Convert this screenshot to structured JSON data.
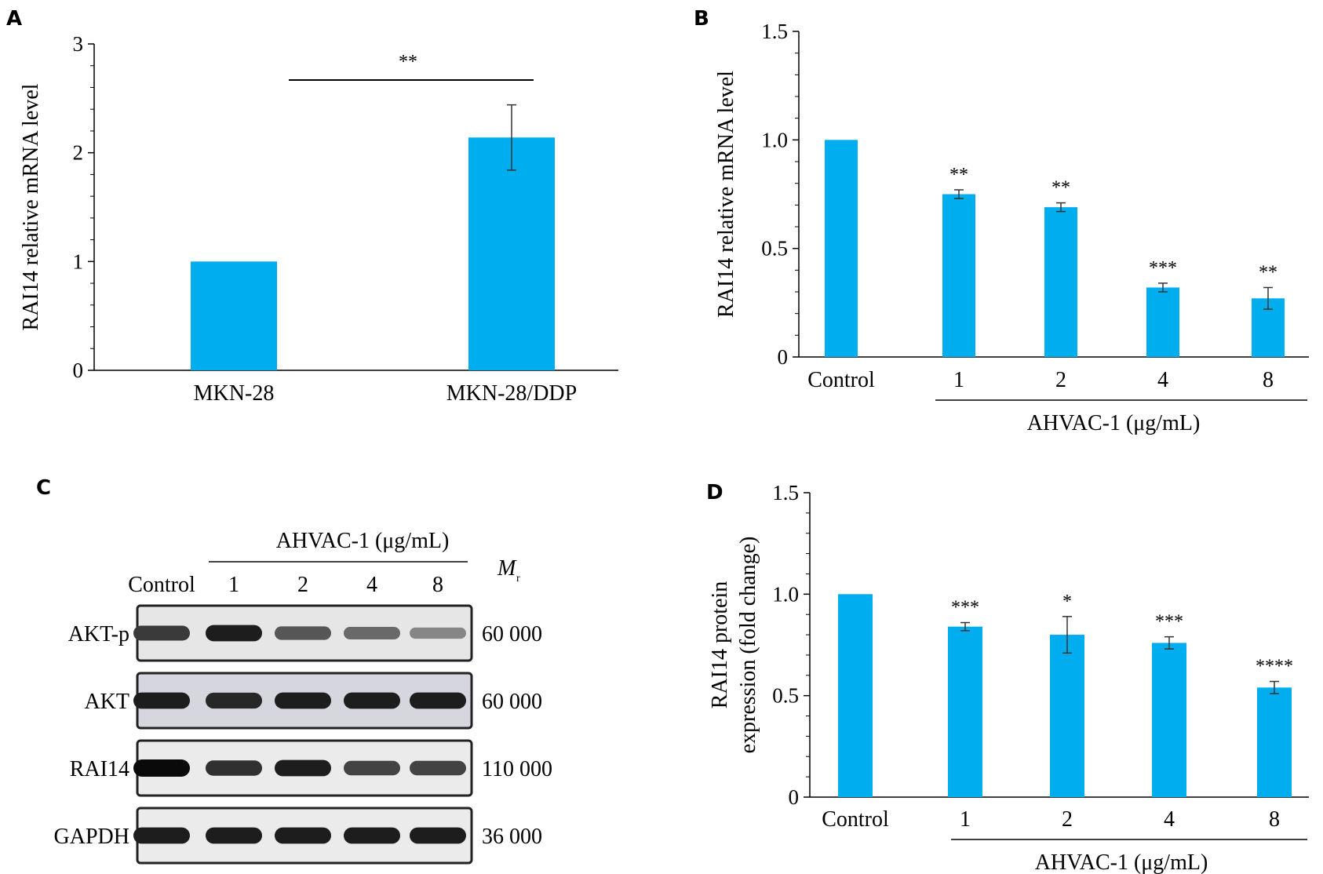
{
  "panel_labels": {
    "a": "A",
    "b": "B",
    "c": "C",
    "d": "D"
  },
  "bar_color": "#00aeef",
  "chart_data": [
    {
      "panel": "A",
      "type": "bar",
      "categories": [
        "MKN-28",
        "MKN-28/DDP"
      ],
      "series": [
        {
          "values": [
            1.0,
            2.14
          ],
          "errors": [
            0.0,
            0.3
          ]
        }
      ],
      "ylabel": "RAI14 relative mRNA level",
      "xlabel": "",
      "ylim": [
        0,
        3
      ],
      "yticks": [
        "0",
        "1",
        "2",
        "3"
      ],
      "significance": [
        {
          "from": "MKN-28",
          "to": "MKN-28/DDP",
          "label": "**"
        }
      ]
    },
    {
      "panel": "B",
      "type": "bar",
      "categories": [
        "Control",
        "1",
        "2",
        "4",
        "8"
      ],
      "series": [
        {
          "values": [
            1.0,
            0.75,
            0.69,
            0.32,
            0.27
          ],
          "errors": [
            0.0,
            0.02,
            0.02,
            0.02,
            0.05
          ]
        }
      ],
      "ylabel": "RAI14 relative mRNA level",
      "group_label": "AHVAC-1 (μg/mL)",
      "ylim": [
        0,
        1.5
      ],
      "yticks": [
        "0",
        "0.5",
        "1.0",
        "1.5"
      ],
      "annotations": [
        "",
        "**",
        "**",
        "***",
        "**"
      ]
    },
    {
      "panel": "D",
      "type": "bar",
      "categories": [
        "Control",
        "1",
        "2",
        "4",
        "8"
      ],
      "series": [
        {
          "values": [
            1.0,
            0.84,
            0.8,
            0.76,
            0.54
          ],
          "errors": [
            0.0,
            0.02,
            0.09,
            0.03,
            0.03
          ]
        }
      ],
      "ylabel_lines": [
        "RAI14 protein",
        "expression (fold change)"
      ],
      "group_label": "AHVAC-1 (μg/mL)",
      "ylim": [
        0,
        1.5
      ],
      "yticks": [
        "0",
        "0.5",
        "1.0",
        "1.5"
      ],
      "annotations": [
        "",
        "***",
        "*",
        "***",
        "****"
      ]
    }
  ],
  "blot": {
    "treatment_label": "AHVAC-1 (μg/mL)",
    "mr_label": "M",
    "mr_sub": "r",
    "lanes": [
      "Control",
      "1",
      "2",
      "4",
      "8"
    ],
    "rows": [
      {
        "name": "AKT-p",
        "mr": "60 000",
        "intensity": [
          0.75,
          0.9,
          0.6,
          0.5,
          0.35
        ],
        "tint": "#e6e6e6"
      },
      {
        "name": "AKT",
        "mr": "60 000",
        "intensity": [
          0.9,
          0.85,
          0.9,
          0.9,
          0.9
        ],
        "tint": "#d6d6df"
      },
      {
        "name": "RAI14",
        "mr": "110 000",
        "intensity": [
          1.0,
          0.8,
          0.9,
          0.7,
          0.7
        ],
        "tint": "#ebebeb"
      },
      {
        "name": "GAPDH",
        "mr": "36 000",
        "intensity": [
          0.9,
          0.9,
          0.9,
          0.9,
          0.9
        ],
        "tint": "#ebebeb"
      }
    ]
  }
}
